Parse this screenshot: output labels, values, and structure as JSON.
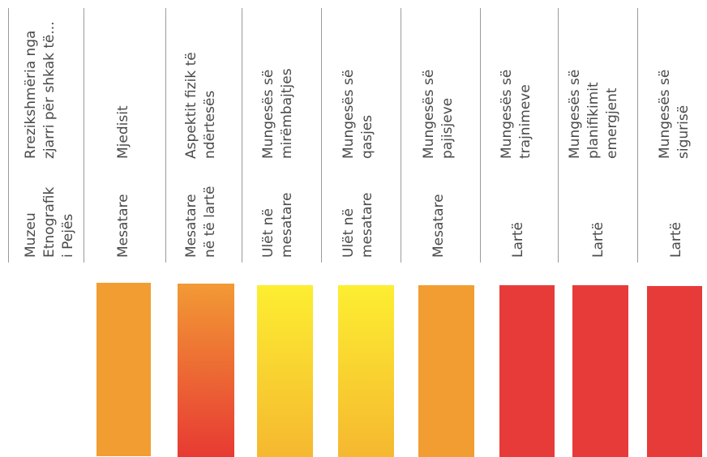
{
  "header": {
    "site_label": [
      "Muzeu",
      "Etnografik",
      "i Pejës"
    ],
    "risk_label": [
      "Rrezikshmëria nga",
      "zjarri për shkak të..."
    ]
  },
  "columns": [
    {
      "factor": [
        "Mjedisit"
      ],
      "level": [
        "Mesatare"
      ]
    },
    {
      "factor": [
        "Aspektit fizik të",
        "ndërtesës"
      ],
      "level": [
        "Mesatare",
        "në të lartë"
      ]
    },
    {
      "factor": [
        "Mungesës së",
        "mirëmbajtjes"
      ],
      "level": [
        "Ulët në",
        "mesatare"
      ]
    },
    {
      "factor": [
        "Mungesës së",
        "qasjes"
      ],
      "level": [
        "Ulët në",
        "mesatare"
      ]
    },
    {
      "factor": [
        "Mungesës së",
        "pajisjeve"
      ],
      "level": [
        "Mesatare"
      ]
    },
    {
      "factor": [
        "Mungesës së",
        "trajnimeve"
      ],
      "level": [
        "Lartë"
      ]
    },
    {
      "factor": [
        "Mungesës së",
        "planifikimit",
        "emergjent"
      ],
      "level": [
        "Lartë"
      ]
    },
    {
      "factor": [
        "Mungesës së",
        "sigurisë"
      ],
      "level": [
        "Lartë"
      ]
    }
  ],
  "colors": {
    "medium": "#f29d31",
    "low_medium_top": "#fdee31",
    "low_medium_bottom": "#f5b830",
    "high": "#e73b3a",
    "medium_high_top": "#f29a35",
    "medium_high_bottom": "#e73a33"
  }
}
